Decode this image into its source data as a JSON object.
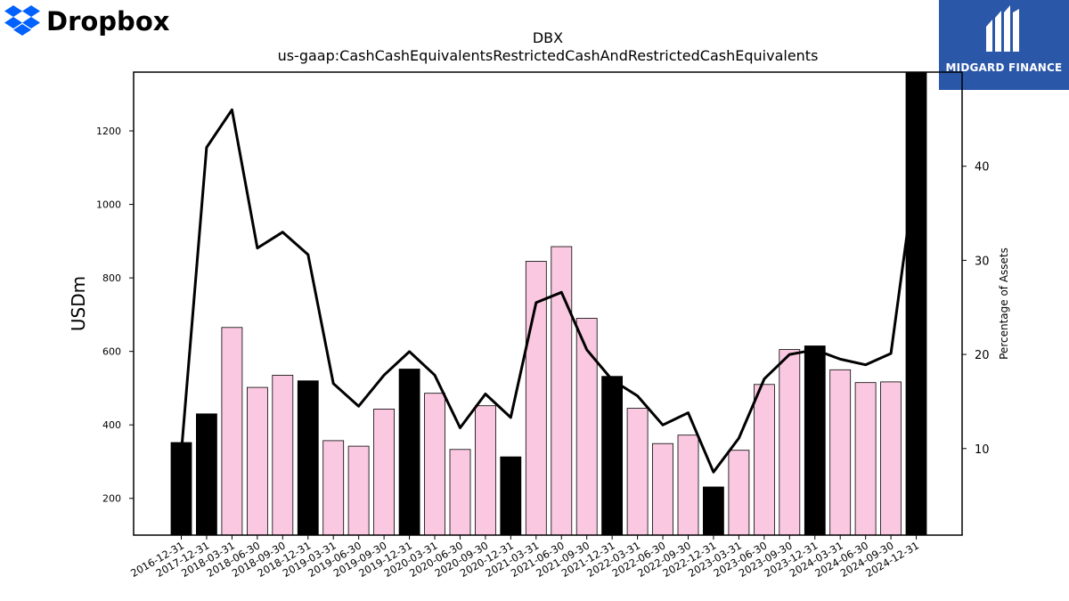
{
  "branding": {
    "left_logo_text": "Dropbox",
    "left_logo_color": "#0061fe",
    "right_logo_text": "MIDGARD FINANCE",
    "right_logo_bg": "#2b57a8"
  },
  "chart_data": {
    "type": "bar",
    "title": "DBX",
    "subtitle": "us-gaap:CashCashEquivalentsRestrictedCashAndRestrictedCashEquivalents",
    "ylabel": "USDm",
    "y2label": "Percentage of Assets",
    "ylim": [
      100,
      1360
    ],
    "y2lim": [
      0.8,
      50
    ],
    "yticks": [
      200,
      400,
      600,
      800,
      1000,
      1200
    ],
    "y2ticks": [
      10,
      20,
      30,
      40
    ],
    "categories": [
      "2016-12-31",
      "2017-12-31",
      "2018-03-31",
      "2018-06-30",
      "2018-09-30",
      "2018-12-31",
      "2019-03-31",
      "2019-06-30",
      "2019-09-30",
      "2019-12-31",
      "2020-03-31",
      "2020-06-30",
      "2020-09-30",
      "2020-12-31",
      "2021-03-31",
      "2021-06-30",
      "2021-09-30",
      "2021-12-31",
      "2022-03-31",
      "2022-06-30",
      "2022-09-30",
      "2022-12-31",
      "2023-03-31",
      "2023-06-30",
      "2023-09-30",
      "2023-12-31",
      "2024-03-31",
      "2024-06-30",
      "2024-09-30",
      "2024-12-31"
    ],
    "series": [
      {
        "type": "bar",
        "values": [
          352,
          430,
          665,
          502,
          535,
          520,
          357,
          342,
          443,
          552,
          486,
          333,
          452,
          313,
          845,
          885,
          690,
          532,
          445,
          349,
          372,
          231,
          331,
          510,
          605,
          615,
          550,
          515,
          517,
          1360
        ],
        "year_end": [
          true,
          true,
          false,
          false,
          false,
          true,
          false,
          false,
          false,
          true,
          false,
          false,
          false,
          true,
          false,
          false,
          false,
          true,
          false,
          false,
          false,
          true,
          false,
          false,
          false,
          true,
          false,
          false,
          false,
          true
        ]
      },
      {
        "type": "line",
        "axis": "right",
        "values": [
          9.5,
          42.0,
          46.0,
          31.3,
          33.0,
          30.6,
          16.9,
          14.5,
          17.8,
          20.3,
          17.8,
          12.2,
          15.8,
          13.3,
          25.5,
          26.6,
          20.5,
          17.3,
          15.6,
          12.5,
          13.8,
          7.5,
          11.1,
          17.4,
          20.0,
          20.5,
          19.5,
          18.9,
          20.1,
          40.0
        ]
      }
    ],
    "colors": {
      "year_end_bar": "#000000",
      "quarter_bar": "#fbc8e1",
      "line": "#000000"
    },
    "grid": false
  }
}
